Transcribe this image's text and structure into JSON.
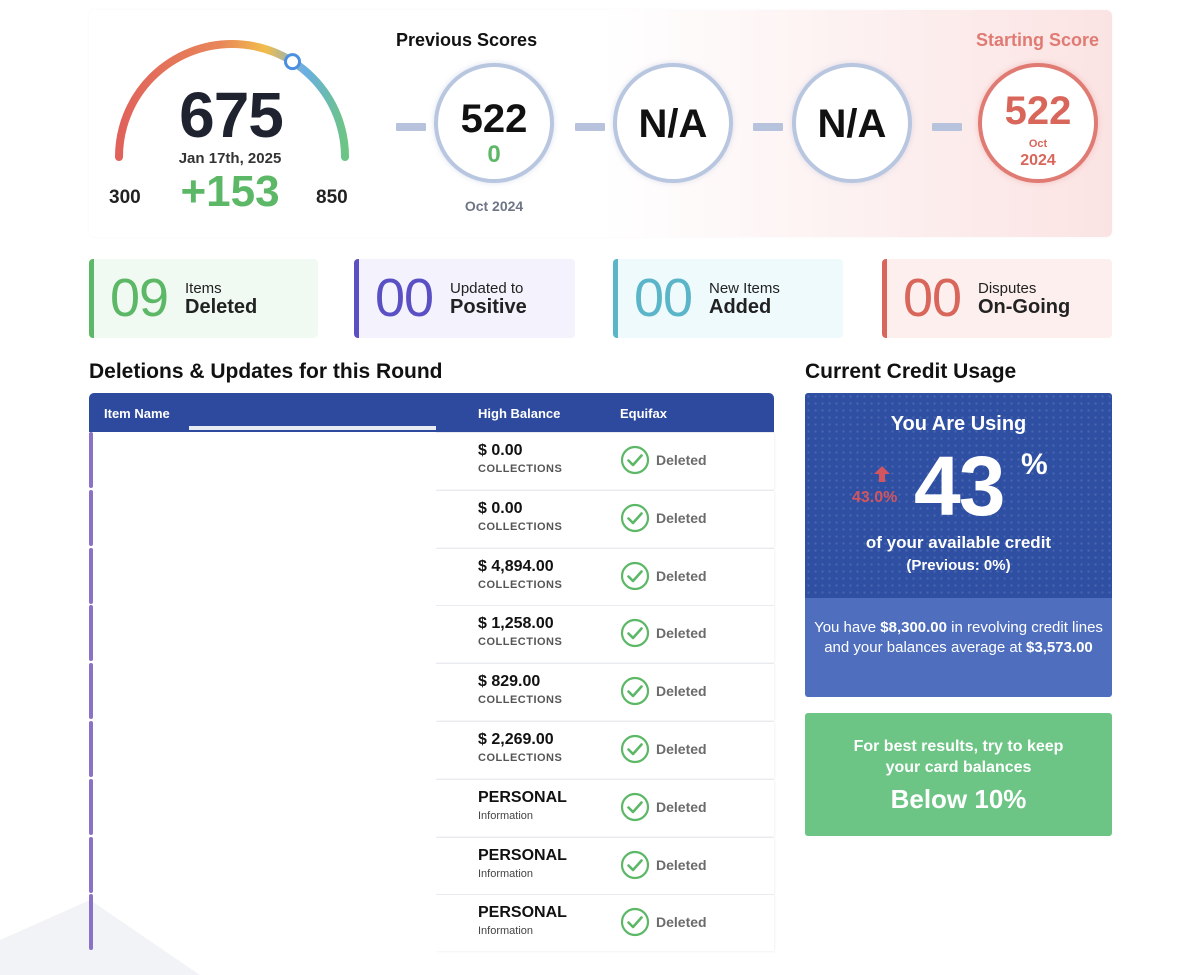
{
  "score": {
    "current": "675",
    "date": "Jan 17th, 2025",
    "change": "+153",
    "min": "300",
    "max": "850",
    "gauge_fraction": 0.68
  },
  "previous": {
    "title": "Previous Scores",
    "items": [
      {
        "value": "522",
        "delta": "0",
        "date": "Oct 2024"
      },
      {
        "value": "N/A"
      },
      {
        "value": "N/A"
      }
    ]
  },
  "starting": {
    "title": "Starting Score",
    "value": "522",
    "month": "Oct",
    "year": "2024"
  },
  "stats": [
    {
      "number": "09",
      "line1": "Items",
      "line2": "Deleted",
      "color": "#5cb866"
    },
    {
      "number": "00",
      "line1": "Updated to",
      "line2": "Positive",
      "color": "#5b4fc4"
    },
    {
      "number": "00",
      "line1": "New Items",
      "line2": "Added",
      "color": "#5ab5c9"
    },
    {
      "number": "00",
      "line1": "Disputes",
      "line2": "On-Going",
      "color": "#d9665a"
    }
  ],
  "deletions": {
    "title": "Deletions & Updates for this Round",
    "headers": {
      "item": "Item Name",
      "balance": "High Balance",
      "bureau": "Equifax"
    },
    "rows": [
      {
        "amount": "$ 0.00",
        "type": "COLLECTIONS",
        "status": "Deleted"
      },
      {
        "amount": "$ 0.00",
        "type": "COLLECTIONS",
        "status": "Deleted"
      },
      {
        "amount": "$ 4,894.00",
        "type": "COLLECTIONS",
        "status": "Deleted"
      },
      {
        "amount": "$ 1,258.00",
        "type": "COLLECTIONS",
        "status": "Deleted"
      },
      {
        "amount": "$ 829.00",
        "type": "COLLECTIONS",
        "status": "Deleted"
      },
      {
        "amount": "$ 2,269.00",
        "type": "COLLECTIONS",
        "status": "Deleted"
      },
      {
        "amount": "PERSONAL",
        "type": "Information",
        "status": "Deleted"
      },
      {
        "amount": "PERSONAL",
        "type": "Information",
        "status": "Deleted"
      },
      {
        "amount": "PERSONAL",
        "type": "Information",
        "status": "Deleted"
      }
    ]
  },
  "usage": {
    "title": "Current Credit Usage",
    "heading": "You Are Using",
    "percent": "43",
    "percent_sign": "%",
    "change": "43.0%",
    "line1": "of your available credit",
    "line2": "(Previous: 0%)",
    "summary_prefix": "You have",
    "revolving": "$8,300.00",
    "summary_mid": "in revolving credit lines and your balances average at",
    "average": "$3,573.00"
  },
  "tip": {
    "line": "For best results, try to keep your card balances",
    "target": "Below 10%"
  }
}
